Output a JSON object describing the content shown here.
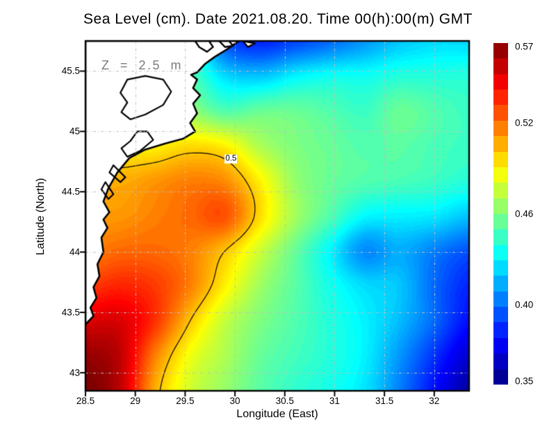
{
  "figure": {
    "title": "Sea Level (cm). Date 2021.08.20. Time 00(h):00(m) GMT"
  },
  "annotation": {
    "text": "Z = 2.5 m",
    "color": "#7b7b7b",
    "lon": 28.66,
    "lat": 45.54
  },
  "axes": {
    "xlabel": "Longitude (East)",
    "ylabel": "Latitude (North)",
    "xlim": [
      28.5,
      32.35
    ],
    "ylim": [
      42.85,
      45.75
    ],
    "xtick_labels": [
      "28.5",
      "29",
      "29.5",
      "30",
      "30.5",
      "31",
      "31.5",
      "32"
    ],
    "xtick_values": [
      28.5,
      29,
      29.5,
      30,
      30.5,
      31,
      31.5,
      32
    ],
    "ytick_labels": [
      "43",
      "43.5",
      "44",
      "44.5",
      "45",
      "45.5"
    ],
    "ytick_values": [
      43,
      43.5,
      44,
      44.5,
      45,
      45.5
    ],
    "grid": true,
    "grid_color": "#bfbfbf",
    "frame_color": "#000000"
  },
  "colorbar": {
    "min": 0.35,
    "max": 0.57,
    "steps": 22,
    "colormap": "jet",
    "tick_labels": [
      "0.57",
      "0.52",
      "0.46",
      "0.40",
      "0.35"
    ],
    "tick_values": [
      0.57,
      0.52,
      0.46,
      0.4,
      0.35
    ]
  },
  "chart_data": {
    "type": "heatmap",
    "title": "Sea Level (cm). Date 2021.08.20. Time 00(h):00(m) GMT",
    "xlabel": "Longitude (East)",
    "ylabel": "Latitude (North)",
    "xlim": [
      28.5,
      32.35
    ],
    "ylim": [
      42.85,
      45.75
    ],
    "value_range": [
      0.35,
      0.57
    ],
    "x": [
      28.5,
      28.85,
      29.2,
      29.55,
      29.9,
      30.25,
      30.6,
      30.95,
      31.3,
      31.65,
      32.0,
      32.35
    ],
    "y": [
      45.75,
      45.46,
      45.17,
      44.88,
      44.59,
      44.3,
      44.01,
      43.72,
      43.43,
      43.14,
      42.85
    ],
    "values": [
      [
        0.47,
        0.47,
        0.46,
        0.44,
        0.395,
        0.385,
        0.392,
        0.4,
        0.41,
        0.42,
        0.425,
        0.425
      ],
      [
        0.475,
        0.475,
        0.465,
        0.45,
        0.425,
        0.42,
        0.43,
        0.435,
        0.435,
        0.44,
        0.44,
        0.44
      ],
      [
        0.48,
        0.48,
        0.475,
        0.465,
        0.45,
        0.455,
        0.455,
        0.45,
        0.445,
        0.455,
        0.45,
        0.445
      ],
      [
        0.49,
        0.49,
        0.49,
        0.495,
        0.49,
        0.47,
        0.46,
        0.455,
        0.45,
        0.452,
        0.448,
        0.445
      ],
      [
        0.505,
        0.505,
        0.51,
        0.515,
        0.512,
        0.49,
        0.465,
        0.455,
        0.45,
        0.448,
        0.445,
        0.44
      ],
      [
        0.51,
        0.51,
        0.515,
        0.52,
        0.525,
        0.495,
        0.468,
        0.45,
        0.432,
        0.43,
        0.428,
        0.42
      ],
      [
        0.515,
        0.52,
        0.52,
        0.515,
        0.5,
        0.477,
        0.455,
        0.432,
        0.408,
        0.415,
        0.405,
        0.395
      ],
      [
        0.53,
        0.535,
        0.53,
        0.515,
        0.49,
        0.467,
        0.452,
        0.437,
        0.425,
        0.42,
        0.4,
        0.385
      ],
      [
        0.55,
        0.55,
        0.532,
        0.5,
        0.475,
        0.46,
        0.45,
        0.44,
        0.43,
        0.418,
        0.4,
        0.38
      ],
      [
        0.565,
        0.556,
        0.515,
        0.485,
        0.47,
        0.455,
        0.447,
        0.44,
        0.43,
        0.41,
        0.388,
        0.368
      ],
      [
        0.572,
        0.556,
        0.505,
        0.478,
        0.465,
        0.452,
        0.443,
        0.437,
        0.427,
        0.405,
        0.38,
        0.358
      ]
    ],
    "contour": {
      "level": 0.5,
      "label": "0.5",
      "label_lon": 29.96,
      "label_lat": 44.77
    },
    "coastline": {
      "stroke": "#000000",
      "land_fill": "#ffffff",
      "main": [
        [
          30.04,
          45.75
        ],
        [
          29.92,
          45.68
        ],
        [
          29.8,
          45.62
        ],
        [
          29.7,
          45.56
        ],
        [
          29.62,
          45.49
        ],
        [
          29.56,
          45.47
        ],
        [
          29.62,
          45.43
        ],
        [
          29.58,
          45.36
        ],
        [
          29.65,
          45.3
        ],
        [
          29.58,
          45.23
        ],
        [
          29.62,
          45.15
        ],
        [
          29.55,
          45.07
        ],
        [
          29.6,
          45.0
        ],
        [
          29.48,
          44.94
        ],
        [
          29.3,
          44.9
        ],
        [
          29.1,
          44.85
        ],
        [
          28.94,
          44.78
        ],
        [
          28.82,
          44.66
        ],
        [
          28.73,
          44.53
        ],
        [
          28.68,
          44.42
        ],
        [
          28.74,
          44.33
        ],
        [
          28.68,
          44.27
        ],
        [
          28.72,
          44.2
        ],
        [
          28.66,
          44.12
        ],
        [
          28.68,
          44.0
        ],
        [
          28.62,
          43.9
        ],
        [
          28.64,
          43.8
        ],
        [
          28.58,
          43.71
        ],
        [
          28.61,
          43.62
        ],
        [
          28.55,
          43.54
        ],
        [
          28.58,
          43.47
        ],
        [
          28.5,
          43.4
        ]
      ],
      "lagoons": [
        [
          [
            28.92,
            45.43
          ],
          [
            29.1,
            45.46
          ],
          [
            29.28,
            45.43
          ],
          [
            29.36,
            45.33
          ],
          [
            29.28,
            45.22
          ],
          [
            29.1,
            45.14
          ],
          [
            28.95,
            45.1
          ],
          [
            28.86,
            45.16
          ],
          [
            28.92,
            45.24
          ],
          [
            28.85,
            45.32
          ]
        ],
        [
          [
            29.12,
            45.0
          ],
          [
            29.18,
            44.93
          ],
          [
            29.05,
            44.84
          ],
          [
            28.92,
            44.79
          ],
          [
            28.86,
            44.86
          ],
          [
            28.95,
            44.92
          ],
          [
            29.02,
            45.0
          ]
        ],
        [
          [
            28.78,
            44.72
          ],
          [
            28.9,
            44.62
          ],
          [
            28.85,
            44.58
          ],
          [
            28.74,
            44.66
          ]
        ],
        [
          [
            28.7,
            44.58
          ],
          [
            28.78,
            44.48
          ],
          [
            28.73,
            44.44
          ],
          [
            28.66,
            44.52
          ]
        ]
      ],
      "islands": [
        [
          [
            29.6,
            45.75
          ],
          [
            29.64,
            45.7
          ],
          [
            29.72,
            45.66
          ],
          [
            29.78,
            45.7
          ],
          [
            29.74,
            45.75
          ]
        ],
        [
          [
            29.84,
            45.75
          ],
          [
            29.9,
            45.7
          ],
          [
            29.98,
            45.71
          ],
          [
            29.94,
            45.75
          ]
        ],
        [
          [
            30.08,
            45.75
          ],
          [
            30.13,
            45.7
          ],
          [
            30.2,
            45.73
          ]
        ]
      ]
    }
  }
}
